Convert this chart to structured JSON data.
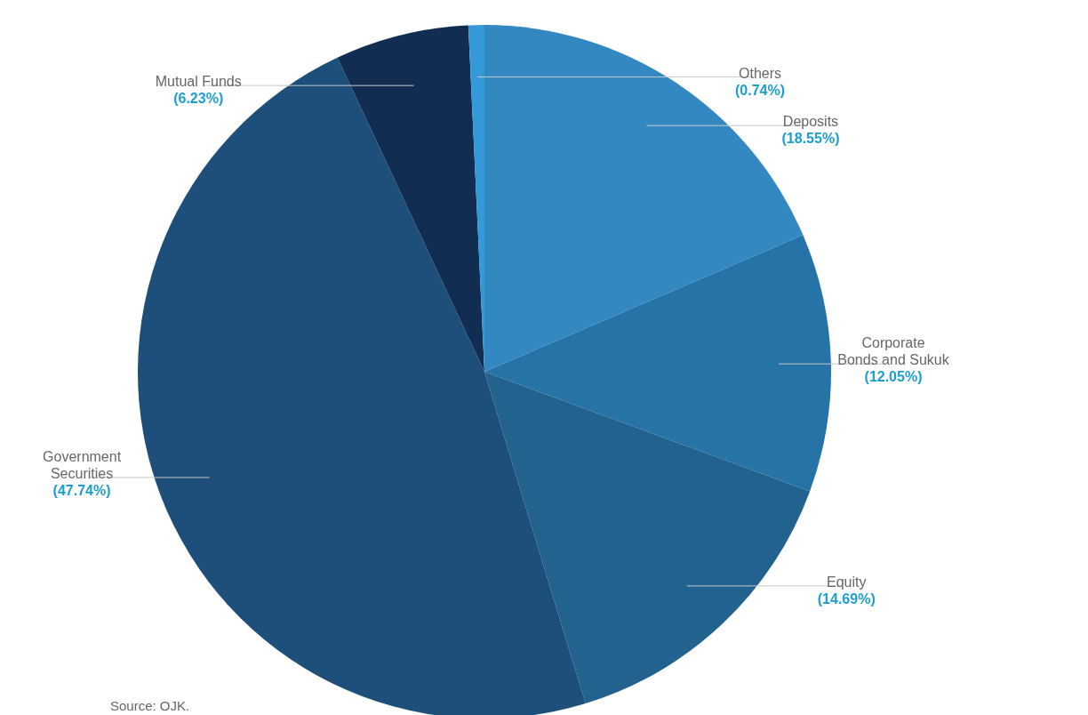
{
  "chart_data": {
    "type": "pie",
    "categories": [
      "Deposits",
      "Corporate Bonds and Sukuk",
      "Equity",
      "Government Securities",
      "Mutual Funds",
      "Others"
    ],
    "values": [
      18.55,
      12.05,
      14.69,
      47.74,
      6.23,
      0.74
    ],
    "value_labels": [
      "(18.55%)",
      "(12.05%)",
      "(14.69%)",
      "(47.74%)",
      "(6.23%)",
      "(0.74%)"
    ],
    "colors": [
      "#3388c2",
      "#2673a7",
      "#22628f",
      "#1e4f7a",
      "#112d52",
      "#3399d9"
    ],
    "annotations": [
      "Source: OJK."
    ]
  }
}
